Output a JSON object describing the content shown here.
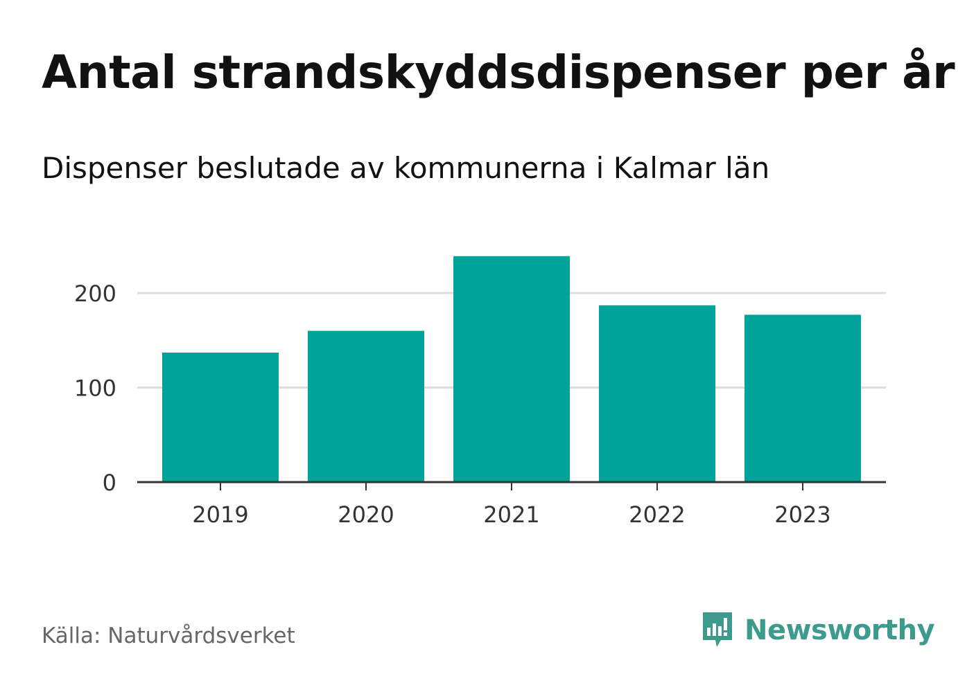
{
  "header": {
    "title": "Antal strandskyddsdispenser per år",
    "subtitle": "Dispenser beslutade av kommunerna i Kalmar län"
  },
  "footer": {
    "source": "Källa: Naturvårdsverket",
    "brand": "Newsworthy",
    "brand_icon": "bar-chart-speech-bubble-icon"
  },
  "colors": {
    "bar": "#00a39a",
    "grid": "#dddddd",
    "axis": "#333333",
    "tick_label": "#333333",
    "brand": "#3d9b8e"
  },
  "chart_data": {
    "type": "bar",
    "title": "Antal strandskyddsdispenser per år",
    "subtitle": "Dispenser beslutade av kommunerna i Kalmar län",
    "categories": [
      "2019",
      "2020",
      "2021",
      "2022",
      "2023"
    ],
    "values": [
      137,
      160,
      239,
      187,
      177
    ],
    "xlabel": "",
    "ylabel": "",
    "ylim": [
      0,
      245
    ],
    "yticks": [
      0,
      100,
      200
    ],
    "grid": true,
    "legend": "none"
  }
}
